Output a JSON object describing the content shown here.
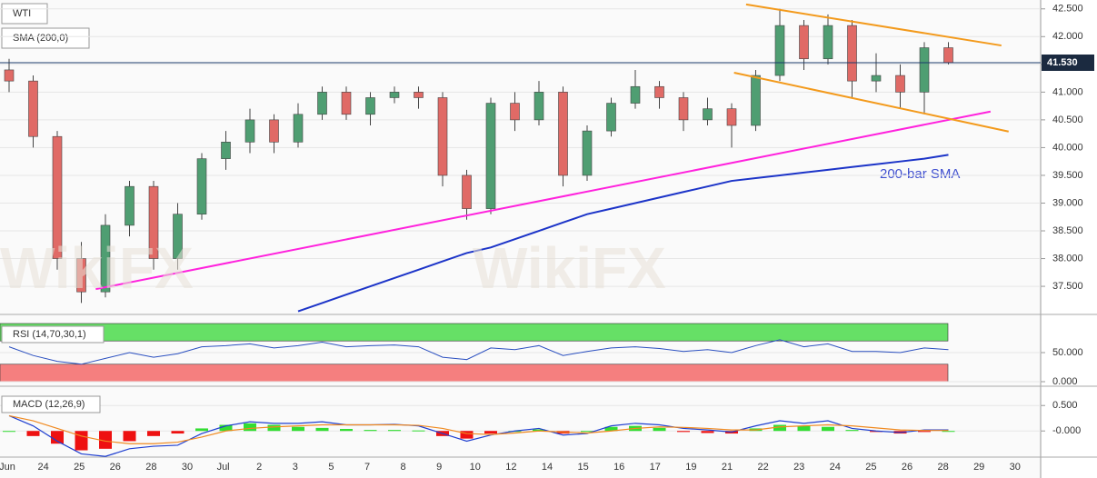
{
  "chart_data": [
    {
      "type": "candlestick",
      "title": "WTI",
      "indicator_label": "SMA (200,0)",
      "annotation": "200-bar SMA",
      "watermark": "WikiFX",
      "open": [
        41.4,
        41.2,
        40.2,
        38.0,
        37.4,
        38.6,
        39.3,
        38.0,
        38.8,
        39.8,
        40.1,
        40.5,
        40.1,
        40.6,
        41.0,
        40.6,
        40.9,
        41.0,
        40.9,
        39.5,
        38.9,
        40.8,
        40.5,
        41.0,
        39.5,
        40.3,
        40.8,
        41.1,
        40.9,
        40.5,
        40.7,
        40.4,
        41.3,
        42.2,
        41.6,
        42.2,
        41.2,
        41.3,
        41.0,
        41.8
      ],
      "high": [
        41.6,
        41.3,
        40.3,
        38.3,
        38.8,
        39.4,
        39.4,
        39.0,
        39.9,
        40.3,
        40.7,
        40.6,
        40.8,
        41.1,
        41.1,
        41.0,
        41.1,
        41.1,
        41.0,
        39.6,
        40.9,
        41.0,
        41.2,
        41.1,
        40.4,
        40.9,
        41.4,
        41.2,
        41.0,
        40.9,
        40.8,
        41.4,
        42.5,
        42.3,
        42.4,
        42.3,
        41.7,
        41.5,
        41.9,
        41.9
      ],
      "low": [
        41.0,
        40.0,
        37.8,
        37.2,
        37.3,
        38.4,
        37.8,
        37.8,
        38.7,
        39.6,
        39.9,
        39.9,
        40.0,
        40.5,
        40.5,
        40.4,
        40.8,
        40.7,
        39.3,
        38.7,
        38.8,
        40.3,
        40.4,
        39.3,
        39.4,
        40.2,
        40.7,
        40.7,
        40.3,
        40.4,
        40.0,
        40.3,
        41.2,
        41.4,
        41.5,
        40.9,
        41.0,
        40.7,
        40.6,
        41.5
      ],
      "close": [
        41.2,
        40.2,
        38.0,
        37.4,
        38.6,
        39.3,
        38.0,
        38.8,
        39.8,
        40.1,
        40.5,
        40.1,
        40.6,
        41.0,
        40.6,
        40.9,
        41.0,
        40.9,
        39.5,
        38.9,
        40.8,
        40.5,
        41.0,
        39.5,
        40.3,
        40.8,
        41.1,
        40.9,
        40.5,
        40.7,
        40.4,
        41.3,
        42.2,
        41.6,
        42.2,
        41.2,
        41.3,
        41.0,
        41.8,
        41.53
      ],
      "up_color": "#4f9e72",
      "down_color": "#e06a66",
      "sma": {
        "color": "#1c34c8",
        "values": [
          null,
          null,
          null,
          null,
          null,
          null,
          null,
          null,
          null,
          null,
          null,
          null,
          37.05,
          37.2,
          37.35,
          37.5,
          37.65,
          37.8,
          37.95,
          38.1,
          38.2,
          38.35,
          38.5,
          38.65,
          38.8,
          38.9,
          39.0,
          39.1,
          39.2,
          39.3,
          39.4,
          39.45,
          39.5,
          39.55,
          39.6,
          39.65,
          39.7,
          39.75,
          39.8,
          39.87
        ]
      },
      "trendlines": [
        {
          "color": "#ff22dd",
          "points": [
            [
              3.6,
              37.45
            ],
            [
              40.75,
              40.65
            ]
          ]
        },
        {
          "color": "#f39a1c",
          "points": [
            [
              30.6,
              42.58
            ],
            [
              41.2,
              41.84
            ]
          ]
        },
        {
          "color": "#f39a1c",
          "points": [
            [
              30.1,
              41.35
            ],
            [
              41.5,
              40.29
            ]
          ]
        }
      ],
      "last": {
        "value": 41.53,
        "label": "41.530"
      },
      "ylim": [
        37.01,
        42.66
      ],
      "yticks": [
        {
          "value": 42.5,
          "label": "42.500"
        },
        {
          "value": 42,
          "label": "42.000"
        },
        {
          "value": 41.5,
          "label": "41.500"
        },
        {
          "value": 41,
          "label": "41.000"
        },
        {
          "value": 40.5,
          "label": "40.500"
        },
        {
          "value": 40,
          "label": "40.000"
        },
        {
          "value": 39.5,
          "label": "39.500"
        },
        {
          "value": 39,
          "label": "39.000"
        },
        {
          "value": 38.5,
          "label": "38.500"
        },
        {
          "value": 38,
          "label": "38.000"
        },
        {
          "value": 37.5,
          "label": "37.500"
        }
      ],
      "grid": true,
      "xtick_labels": [
        "Jun",
        "24",
        "25",
        "26",
        "28",
        "30",
        "Jul",
        "2",
        "3",
        "5",
        "7",
        "8",
        "9",
        "10",
        "12",
        "14",
        "15",
        "16",
        "17",
        "19",
        "21",
        "22",
        "23",
        "24",
        "25",
        "26",
        "28",
        "29",
        "30"
      ]
    },
    {
      "type": "line",
      "title": "RSI (14,70,30,1)",
      "color": "#2a4fc0",
      "values": [
        60,
        45,
        35,
        30,
        40,
        50,
        42,
        48,
        60,
        62,
        65,
        58,
        62,
        68,
        60,
        62,
        63,
        60,
        42,
        38,
        58,
        55,
        62,
        45,
        52,
        58,
        60,
        57,
        52,
        55,
        50,
        62,
        72,
        60,
        65,
        52,
        52,
        50,
        58,
        55
      ],
      "overbought": 70,
      "oversold": 30,
      "overbought_color": "#66e066",
      "oversold_color": "#f57f7f",
      "ylim": [
        0,
        100
      ],
      "yticks": [
        {
          "value": 50,
          "label": "50.000"
        },
        {
          "value": 0,
          "label": "0.000"
        }
      ]
    },
    {
      "type": "macd",
      "title": "MACD (12,26,9)",
      "hist_up_color": "#33dd33",
      "hist_down_color": "#ee1111",
      "histogram": [
        0.0,
        -0.1,
        -0.25,
        -0.38,
        -0.35,
        -0.2,
        -0.1,
        -0.05,
        0.05,
        0.12,
        0.15,
        0.12,
        0.08,
        0.06,
        0.04,
        0.02,
        0.02,
        0.01,
        -0.1,
        -0.15,
        -0.05,
        0.0,
        0.03,
        -0.05,
        0.0,
        0.08,
        0.1,
        0.06,
        -0.02,
        -0.04,
        -0.05,
        0.05,
        0.12,
        0.1,
        0.08,
        0.02,
        -0.02,
        -0.05,
        -0.02,
        0.0
      ],
      "series": [
        {
          "color": "#1f3fd0",
          "values": [
            0.3,
            0.1,
            -0.2,
            -0.45,
            -0.5,
            -0.35,
            -0.3,
            -0.28,
            -0.05,
            0.1,
            0.18,
            0.15,
            0.15,
            0.18,
            0.12,
            0.12,
            0.13,
            0.1,
            -0.05,
            -0.2,
            -0.08,
            0.0,
            0.05,
            -0.08,
            -0.05,
            0.1,
            0.15,
            0.12,
            0.05,
            0.02,
            -0.02,
            0.1,
            0.2,
            0.15,
            0.2,
            0.05,
            0.0,
            -0.03,
            0.02,
            0.02
          ]
        },
        {
          "color": "#f08a20",
          "values": [
            0.3,
            0.2,
            0.05,
            -0.1,
            -0.2,
            -0.25,
            -0.25,
            -0.22,
            -0.12,
            0.0,
            0.05,
            0.08,
            0.1,
            0.12,
            0.12,
            0.12,
            0.12,
            0.11,
            0.05,
            -0.05,
            -0.07,
            -0.04,
            0.0,
            -0.02,
            -0.04,
            0.0,
            0.05,
            0.08,
            0.07,
            0.05,
            0.02,
            0.02,
            0.08,
            0.1,
            0.12,
            0.1,
            0.06,
            0.02,
            0.01,
            0.01
          ]
        }
      ],
      "ylim": [
        -0.46,
        0.79
      ],
      "yticks": [
        {
          "value": 0.5,
          "label": "0.500"
        },
        {
          "value": 0,
          "label": "-0.000"
        }
      ]
    }
  ]
}
